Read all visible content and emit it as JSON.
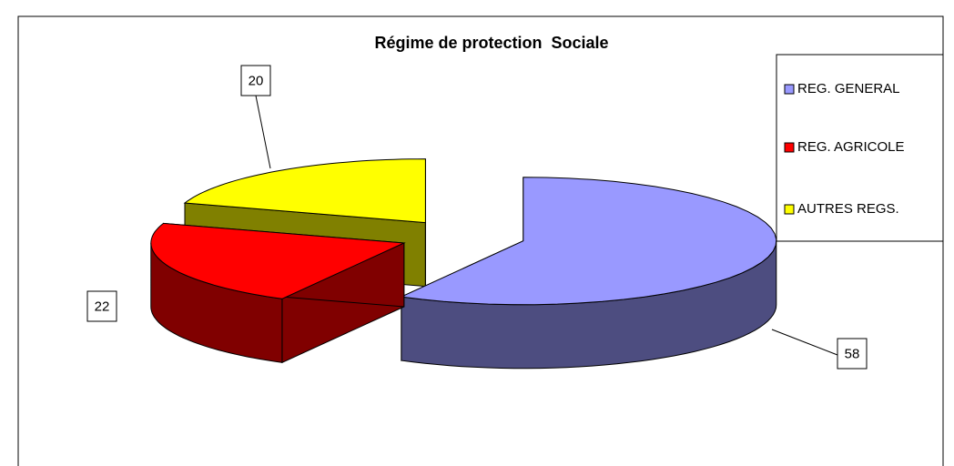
{
  "chart_data": {
    "type": "pie3d",
    "title": "Régime de protection  Sociale",
    "categories": [
      "REG. GENERAL",
      "REG. AGRICOLE",
      "AUTRES REGS."
    ],
    "values": [
      58,
      22,
      20
    ],
    "colors": [
      "#9999ff",
      "#ff0000",
      "#ffff00"
    ],
    "legend": "right"
  }
}
